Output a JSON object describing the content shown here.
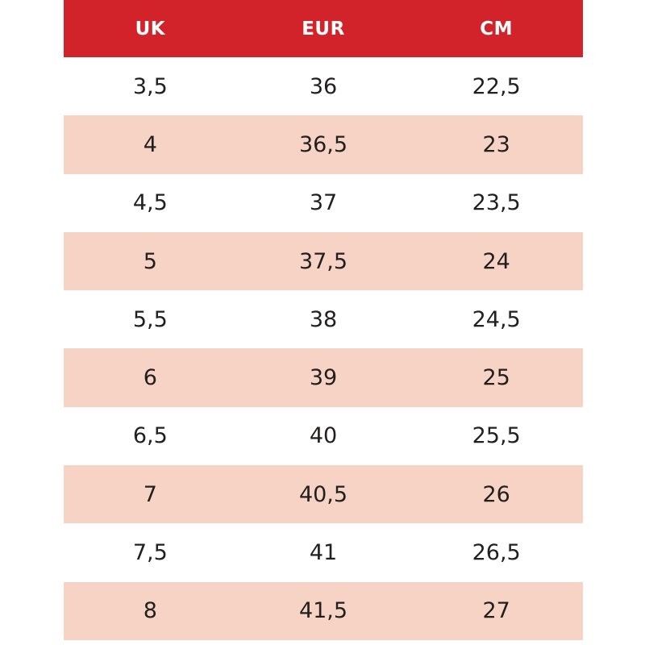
{
  "chart_data": {
    "type": "table",
    "title": "",
    "columns": [
      "UK",
      "EUR",
      "CM"
    ],
    "rows": [
      [
        "3,5",
        "36",
        "22,5"
      ],
      [
        "4",
        "36,5",
        "23"
      ],
      [
        "4,5",
        "37",
        "23,5"
      ],
      [
        "5",
        "37,5",
        "24"
      ],
      [
        "5,5",
        "38",
        "24,5"
      ],
      [
        "6",
        "39",
        "25"
      ],
      [
        "6,5",
        "40",
        "25,5"
      ],
      [
        "7",
        "40,5",
        "26"
      ],
      [
        "7,5",
        "41",
        "26,5"
      ],
      [
        "8",
        "41,5",
        "27"
      ]
    ],
    "layout": {
      "striped": true,
      "first_data_row": "white",
      "stripe_rows": "even (2nd, 4th, ...)",
      "column_alignment": "center",
      "grid_lines": "none"
    }
  },
  "colors": {
    "header_bg": "#d2232a",
    "header_text": "#ffffff",
    "stripe_bg": "#f6d3c5",
    "row_bg": "#ffffff",
    "cell_text": "#221f1f",
    "page_bg": "#ffffff"
  }
}
